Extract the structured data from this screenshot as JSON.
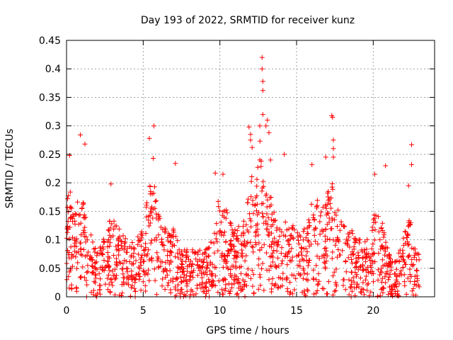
{
  "chart_data": {
    "type": "scatter",
    "title": "Day 193 of 2022, SRMTID for receiver kunz",
    "xlabel": "GPS time / hours",
    "ylabel": "SRMTID / TECUs",
    "xlim": [
      0,
      24
    ],
    "ylim": [
      0,
      0.45
    ],
    "xticks": [
      0,
      5,
      10,
      15,
      20
    ],
    "xtick_labels": [
      "0",
      "5",
      "10",
      "15",
      "20"
    ],
    "yticks": [
      0,
      0.05,
      0.1,
      0.15,
      0.2,
      0.25,
      0.3,
      0.35,
      0.4,
      0.45
    ],
    "ytick_labels": [
      "0",
      "0.05",
      "0.1",
      "0.15",
      "0.2",
      "0.25",
      "0.3",
      "0.35",
      "0.4",
      "0.45"
    ],
    "grid": true,
    "marker": "+",
    "color": "#ff0000",
    "envelope": {
      "x": [
        0,
        0.2,
        0.5,
        0.9,
        1.1,
        1.5,
        1.8,
        2.2,
        2.8,
        3.0,
        3.4,
        4.0,
        4.6,
        5.0,
        5.4,
        5.7,
        6.0,
        6.5,
        7.0,
        7.5,
        8.0,
        8.5,
        9.0,
        9.5,
        9.8,
        10.2,
        10.6,
        11.0,
        11.5,
        12.0,
        12.3,
        12.6,
        12.8,
        13.1,
        13.4,
        13.8,
        14.2,
        14.8,
        15.2,
        15.6,
        16.0,
        16.4,
        16.8,
        17.2,
        17.4,
        17.8,
        18.3,
        18.8,
        19.3,
        19.8,
        20.1,
        20.5,
        21.0,
        21.5,
        22.0,
        22.4,
        22.7,
        23.0
      ],
      "y": [
        0.16,
        0.2,
        0.14,
        0.2,
        0.17,
        0.13,
        0.08,
        0.09,
        0.13,
        0.14,
        0.12,
        0.1,
        0.1,
        0.12,
        0.2,
        0.2,
        0.15,
        0.12,
        0.12,
        0.08,
        0.08,
        0.08,
        0.08,
        0.1,
        0.18,
        0.17,
        0.14,
        0.12,
        0.13,
        0.22,
        0.19,
        0.3,
        0.22,
        0.2,
        0.17,
        0.14,
        0.13,
        0.12,
        0.12,
        0.12,
        0.17,
        0.18,
        0.16,
        0.21,
        0.19,
        0.15,
        0.13,
        0.11,
        0.1,
        0.1,
        0.17,
        0.14,
        0.08,
        0.07,
        0.11,
        0.15,
        0.09,
        0.07
      ]
    },
    "peaks": [
      {
        "x": 0.2,
        "y": 0.248
      },
      {
        "x": 0.9,
        "y": 0.284
      },
      {
        "x": 1.2,
        "y": 0.268
      },
      {
        "x": 2.9,
        "y": 0.198
      },
      {
        "x": 5.4,
        "y": 0.278
      },
      {
        "x": 5.7,
        "y": 0.3
      },
      {
        "x": 5.65,
        "y": 0.243
      },
      {
        "x": 7.1,
        "y": 0.234
      },
      {
        "x": 9.7,
        "y": 0.217
      },
      {
        "x": 10.2,
        "y": 0.215
      },
      {
        "x": 11.9,
        "y": 0.298
      },
      {
        "x": 12.0,
        "y": 0.285
      },
      {
        "x": 12.0,
        "y": 0.275
      },
      {
        "x": 12.1,
        "y": 0.262
      },
      {
        "x": 12.6,
        "y": 0.3
      },
      {
        "x": 12.75,
        "y": 0.42
      },
      {
        "x": 12.75,
        "y": 0.4
      },
      {
        "x": 12.8,
        "y": 0.378
      },
      {
        "x": 12.8,
        "y": 0.362
      },
      {
        "x": 12.8,
        "y": 0.32
      },
      {
        "x": 13.0,
        "y": 0.3
      },
      {
        "x": 13.1,
        "y": 0.31
      },
      {
        "x": 13.2,
        "y": 0.288
      },
      {
        "x": 13.3,
        "y": 0.24
      },
      {
        "x": 14.2,
        "y": 0.25
      },
      {
        "x": 16.0,
        "y": 0.232
      },
      {
        "x": 16.9,
        "y": 0.245
      },
      {
        "x": 17.3,
        "y": 0.318
      },
      {
        "x": 17.35,
        "y": 0.315
      },
      {
        "x": 17.4,
        "y": 0.275
      },
      {
        "x": 17.4,
        "y": 0.26
      },
      {
        "x": 17.4,
        "y": 0.245
      },
      {
        "x": 20.1,
        "y": 0.215
      },
      {
        "x": 20.8,
        "y": 0.23
      },
      {
        "x": 22.3,
        "y": 0.195
      },
      {
        "x": 22.5,
        "y": 0.267
      },
      {
        "x": 22.5,
        "y": 0.232
      }
    ]
  }
}
